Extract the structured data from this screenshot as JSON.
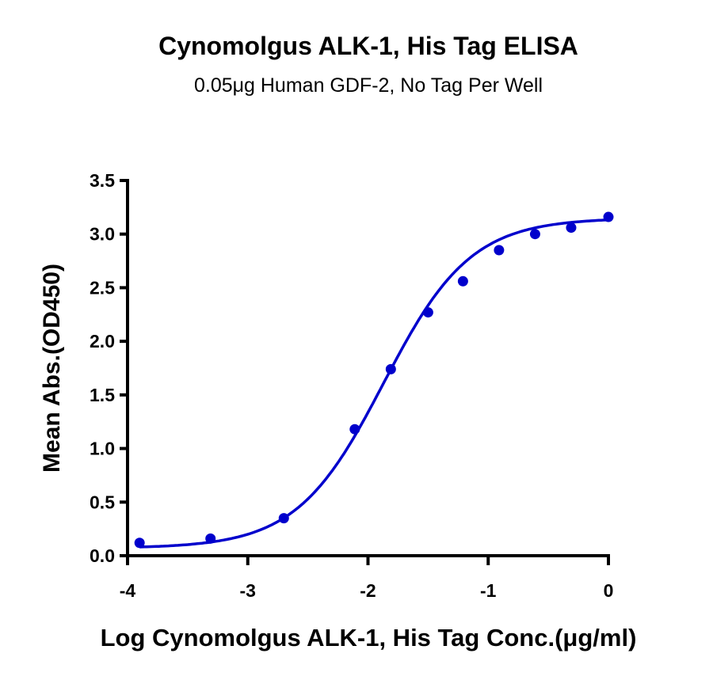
{
  "chart_data": {
    "type": "scatter",
    "title": "Cynomolgus ALK-1, His Tag ELISA",
    "subtitle": "0.05μg Human GDF-2, No Tag Per Well",
    "xlabel": "Log Cynomolgus ALK-1, His Tag Conc.(μg/ml)",
    "ylabel": "Mean Abs.(OD450)",
    "xlim": [
      -4,
      0
    ],
    "ylim": [
      0,
      3.5
    ],
    "xticks": [
      "-4",
      "-3",
      "-2",
      "-1",
      "0"
    ],
    "yticks": [
      "0.0",
      "0.5",
      "1.0",
      "1.5",
      "2.0",
      "2.5",
      "3.0",
      "3.5"
    ],
    "grid": false,
    "color": "#0000CC",
    "x": [
      -3.9,
      -3.31,
      -2.7,
      -2.11,
      -1.81,
      -1.5,
      -1.21,
      -0.91,
      -0.61,
      -0.31,
      0.0
    ],
    "y": [
      0.12,
      0.16,
      0.35,
      1.18,
      1.74,
      2.27,
      2.56,
      2.85,
      3.0,
      3.06,
      3.16
    ],
    "fit": {
      "model": "4PL",
      "bottom": 0.07,
      "top": 3.15,
      "logEC50": -1.87,
      "hill": 1.2
    }
  }
}
